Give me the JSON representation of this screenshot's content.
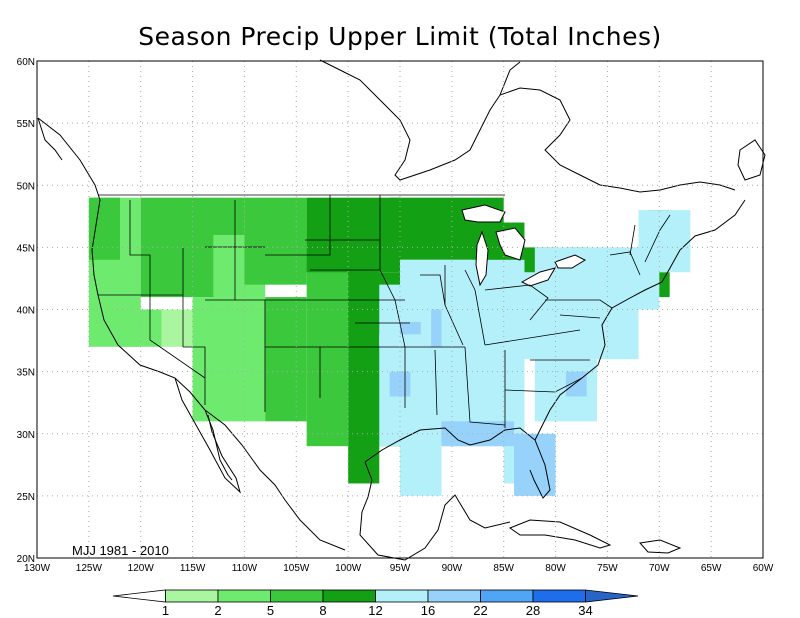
{
  "title": "Season Precip Upper Limit (Total Inches)",
  "period": "MJJ 1981 - 2010",
  "lon_labels": [
    "130W",
    "125W",
    "120W",
    "115W",
    "110W",
    "105W",
    "100W",
    "95W",
    "90W",
    "85W",
    "80W",
    "75W",
    "70W",
    "65W",
    "60W"
  ],
  "lat_labels": [
    "60N",
    "55N",
    "50N",
    "45N",
    "40N",
    "35N",
    "30N",
    "25N",
    "20N"
  ],
  "colorbar": {
    "labels": [
      "1",
      "2",
      "5",
      "8",
      "12",
      "16",
      "22",
      "28",
      "34"
    ],
    "colors": [
      "#ffffff",
      "#aaf5a0",
      "#6eeb6e",
      "#3cc83c",
      "#14a014",
      "#b4f0fa",
      "#96d2fa",
      "#50a5f5",
      "#1e6eeb",
      "#2864c8"
    ]
  },
  "map_colors": {
    "coast": "#000000",
    "state_border": "#000000",
    "grid": "#aaaaaa"
  }
}
